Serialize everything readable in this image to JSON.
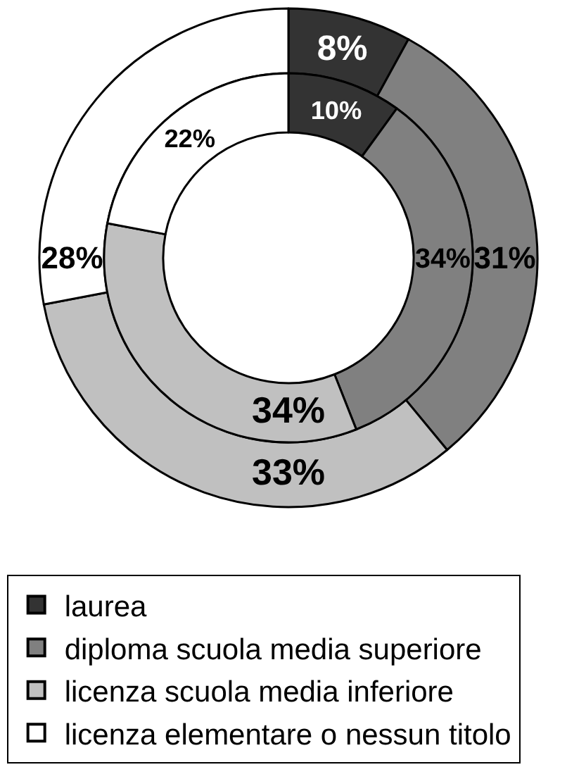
{
  "chart_data": {
    "type": "donut",
    "categories": [
      "laurea",
      "diploma scuola media superiore",
      "licenza scuola media inferiore",
      "licenza elementare o nessun titolo"
    ],
    "colors": [
      "#333333",
      "#808080",
      "#c0c0c0",
      "#ffffff"
    ],
    "series": [
      {
        "values": [
          8,
          31,
          33,
          28
        ],
        "value_labels": [
          "8%",
          "31%",
          "33%",
          "28%"
        ]
      },
      {
        "values": [
          10,
          34,
          34,
          22
        ],
        "value_labels": [
          "10%",
          "34%",
          "34%",
          "22%"
        ]
      }
    ],
    "legend": "bottom"
  }
}
